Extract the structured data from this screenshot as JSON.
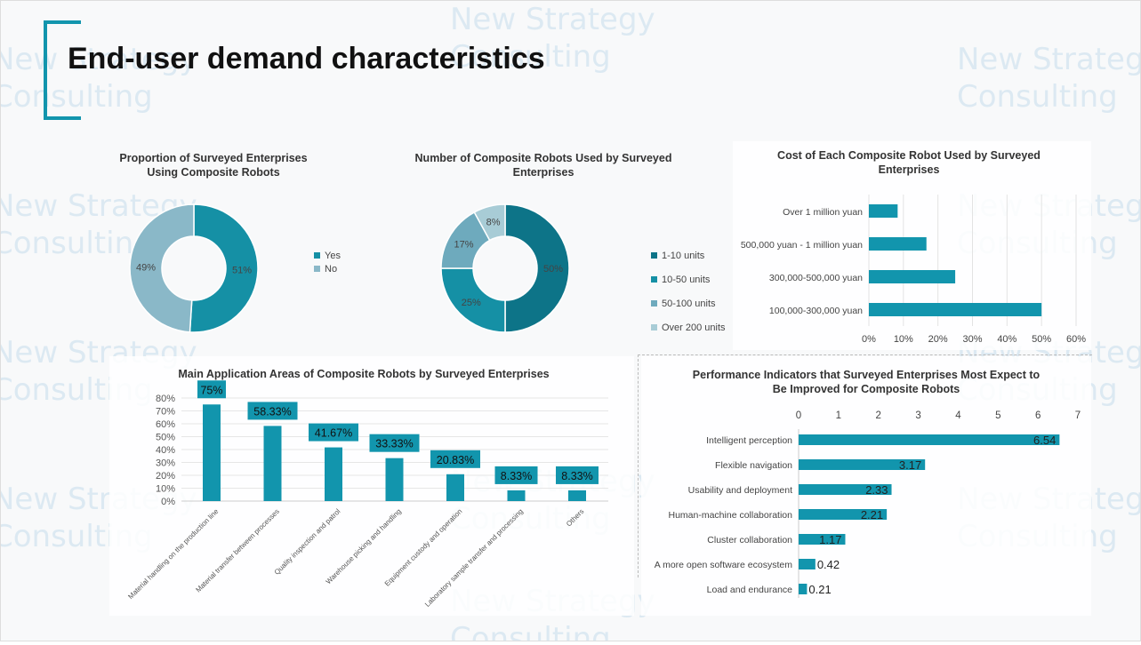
{
  "header": {
    "title": "End-user demand characteristics"
  },
  "watermark": {
    "line1": "New Strategy",
    "line2": "Consulting"
  },
  "colors": {
    "accent": "#1295ad",
    "dark": "#0b7285",
    "mid": "#1590a5",
    "light": "#6eaabd",
    "lighter": "#a8ccd6"
  },
  "chart_data": [
    {
      "type": "pie",
      "title": "Proportion of Surveyed Enterprises Using Composite Robots",
      "labels": [
        "Yes",
        "No"
      ],
      "values": [
        51,
        49
      ],
      "value_labels": [
        "51%",
        "49%"
      ],
      "colors": [
        "#1590a5",
        "#8ab8c8"
      ],
      "legend": "right"
    },
    {
      "type": "pie",
      "title": "Number of Composite Robots Used by Surveyed Enterprises",
      "labels": [
        "1-10 units",
        "10-50 units",
        "50-100 units",
        "Over 200 units"
      ],
      "values": [
        50,
        25,
        17,
        8
      ],
      "value_labels": [
        "50%",
        "25%",
        "17%",
        "8%"
      ],
      "colors": [
        "#0d7488",
        "#1590a5",
        "#6eaabd",
        "#a8ccd6"
      ],
      "legend": "right"
    },
    {
      "type": "bar",
      "orientation": "horizontal",
      "title": "Cost of Each Composite Robot Used by Surveyed Enterprises",
      "categories": [
        "Over 1 million yuan",
        "500,000 yuan - 1 million yuan",
        "300,000-500,000 yuan",
        "100,000-300,000 yuan"
      ],
      "values": [
        8.33,
        16.67,
        25,
        50
      ],
      "xlim": [
        0,
        60
      ],
      "xticks": [
        "0%",
        "10%",
        "20%",
        "30%",
        "40%",
        "50%",
        "60%"
      ],
      "grid": true
    },
    {
      "type": "bar",
      "title": "Main Application Areas of Composite Robots by Surveyed Enterprises",
      "categories": [
        "Material handling on the production line",
        "Material transfer between processes",
        "Quality inspection and patrol",
        "Warehouse picking and handling",
        "Equipment custody and operation",
        "Laboratory sample transfer and processing",
        "Others"
      ],
      "values": [
        75,
        58.33,
        41.67,
        33.33,
        20.83,
        8.33,
        8.33
      ],
      "value_labels": [
        "75%",
        "58.33%",
        "41.67%",
        "33.33%",
        "20.83%",
        "8.33%",
        "8.33%"
      ],
      "ylim": [
        0,
        80
      ],
      "yticks": [
        "0%",
        "10%",
        "20%",
        "30%",
        "40%",
        "50%",
        "60%",
        "70%",
        "80%"
      ],
      "grid": true
    },
    {
      "type": "bar",
      "orientation": "horizontal",
      "title": "Performance Indicators that Surveyed Enterprises Most Expect to Be Improved for Composite Robots",
      "categories": [
        "Intelligent perception",
        "Flexible navigation",
        "Usability and deployment",
        "Human-machine collaboration",
        "Cluster collaboration",
        "A more open software ecosystem",
        "Load and endurance"
      ],
      "values": [
        6.54,
        3.17,
        2.33,
        2.21,
        1.17,
        0.42,
        0.21
      ],
      "value_labels": [
        "6.54",
        "3.17",
        "2.33",
        "2.21",
        "1.17",
        "0.42",
        "0.21"
      ],
      "xlim": [
        0,
        7
      ],
      "xticks": [
        "0",
        "1",
        "2",
        "3",
        "4",
        "5",
        "6",
        "7"
      ],
      "axis_position": "top"
    }
  ]
}
